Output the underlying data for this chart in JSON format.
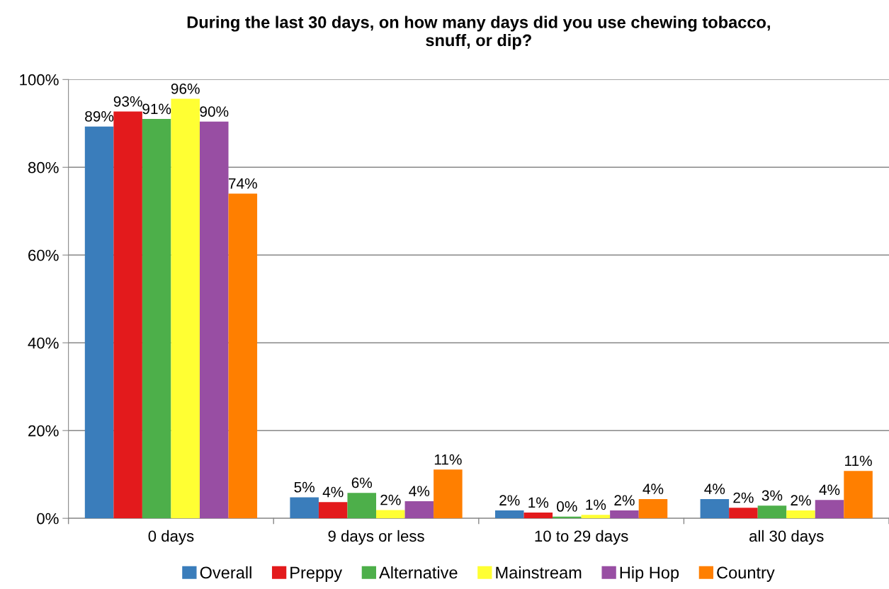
{
  "chart_data": {
    "type": "bar",
    "title": "During the last 30 days, on how many days did you use chewing tobacco,\nsnuff, or dip?",
    "categories": [
      "0 days",
      "9 days or less",
      "10 to 29 days",
      "all 30 days"
    ],
    "series": [
      {
        "name": "Overall",
        "color": "#3a7dbb",
        "values": [
          89.3,
          4.8,
          1.8,
          4.4
        ],
        "value_labels": [
          "89%",
          "5%",
          "2%",
          "4%"
        ]
      },
      {
        "name": "Preppy",
        "color": "#e31a1c",
        "values": [
          92.7,
          3.7,
          1.3,
          2.4
        ],
        "value_labels": [
          "93%",
          "4%",
          "1%",
          "2%"
        ]
      },
      {
        "name": "Alternative",
        "color": "#4daf4a",
        "values": [
          91.0,
          5.8,
          0.4,
          2.9
        ],
        "value_labels": [
          "91%",
          "6%",
          "0%",
          "3%"
        ]
      },
      {
        "name": "Mainstream",
        "color": "#ffff33",
        "values": [
          95.6,
          1.9,
          0.8,
          1.8
        ],
        "value_labels": [
          "96%",
          "2%",
          "1%",
          "2%"
        ]
      },
      {
        "name": "Hip Hop",
        "color": "#984ea3",
        "values": [
          90.4,
          3.9,
          1.8,
          4.2
        ],
        "value_labels": [
          "90%",
          "4%",
          "2%",
          "4%"
        ]
      },
      {
        "name": "Country",
        "color": "#ff7f00",
        "values": [
          74.0,
          11.1,
          4.4,
          10.8
        ],
        "value_labels": [
          "74%",
          "11%",
          "4%",
          "11%"
        ]
      }
    ],
    "ylim": [
      0,
      100
    ],
    "yticks": [
      {
        "value": 0,
        "label": "0%"
      },
      {
        "value": 20,
        "label": "20%"
      },
      {
        "value": 40,
        "label": "40%"
      },
      {
        "value": 60,
        "label": "60%"
      },
      {
        "value": 80,
        "label": "80%"
      },
      {
        "value": 100,
        "label": "100%"
      }
    ],
    "grid": "y",
    "legend": "bottom"
  }
}
